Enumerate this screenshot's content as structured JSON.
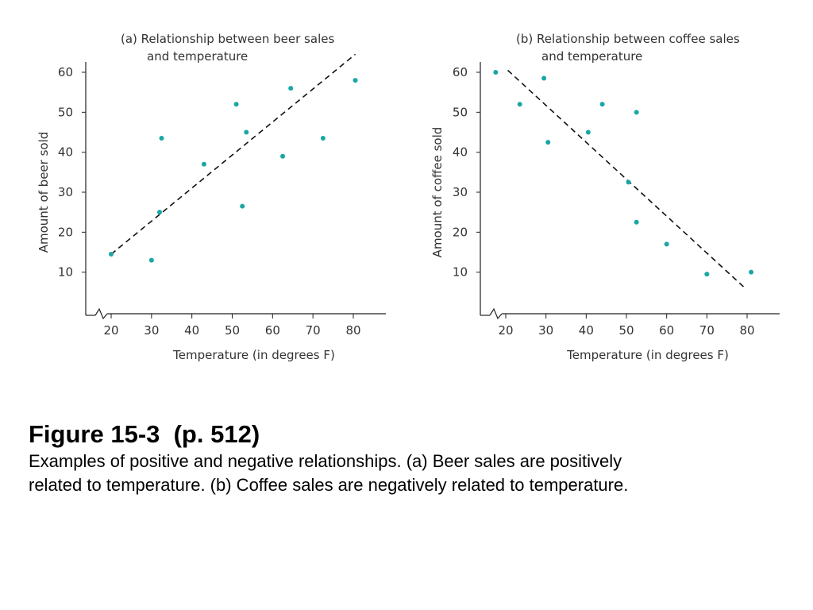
{
  "charts": [
    {
      "title_lines": [
        "(a) Relationship between beer sales",
        "and temperature"
      ],
      "xlabel": "Temperature (in degrees F)",
      "ylabel": "Amount of beer sold",
      "xticks": [
        20,
        30,
        40,
        50,
        60,
        70,
        80
      ],
      "yticks": [
        10,
        20,
        30,
        40,
        50,
        60
      ],
      "point_color": "#1aa6a6"
    },
    {
      "title_lines": [
        "(b) Relationship between coffee sales",
        "and temperature"
      ],
      "xlabel": "Temperature (in degrees F)",
      "ylabel": "Amount of coffee sold",
      "xticks": [
        20,
        30,
        40,
        50,
        60,
        70,
        80
      ],
      "yticks": [
        10,
        20,
        30,
        40,
        50,
        60
      ],
      "point_color": "#1aa6a6"
    }
  ],
  "chart_data": [
    {
      "type": "scatter",
      "title": "(a) Relationship between beer sales and temperature",
      "xlabel": "Temperature (in degrees F)",
      "ylabel": "Amount of beer sold",
      "xlim": [
        15,
        88
      ],
      "ylim": [
        0,
        65
      ],
      "axis_break": "x",
      "grid": false,
      "points": [
        {
          "x": 20,
          "y": 14.5
        },
        {
          "x": 32.5,
          "y": 43.5
        },
        {
          "x": 30,
          "y": 13
        },
        {
          "x": 32,
          "y": 25
        },
        {
          "x": 43,
          "y": 37
        },
        {
          "x": 51,
          "y": 52
        },
        {
          "x": 53.5,
          "y": 45
        },
        {
          "x": 52.5,
          "y": 26.5
        },
        {
          "x": 62.5,
          "y": 39
        },
        {
          "x": 64.5,
          "y": 56
        },
        {
          "x": 72.5,
          "y": 43.5
        },
        {
          "x": 80.5,
          "y": 58
        }
      ],
      "trend_line": {
        "style": "dashed",
        "from": {
          "x": 20,
          "y": 14.5
        },
        "to": {
          "x": 80.5,
          "y": 64.5
        }
      }
    },
    {
      "type": "scatter",
      "title": "(b) Relationship between coffee sales and temperature",
      "xlabel": "Temperature (in degrees F)",
      "ylabel": "Amount of coffee sold",
      "xlim": [
        15,
        88
      ],
      "ylim": [
        0,
        65
      ],
      "axis_break": "x",
      "grid": false,
      "points": [
        {
          "x": 17.5,
          "y": 60
        },
        {
          "x": 23.5,
          "y": 52
        },
        {
          "x": 29.5,
          "y": 58.5
        },
        {
          "x": 30.5,
          "y": 42.5
        },
        {
          "x": 40.5,
          "y": 45
        },
        {
          "x": 44,
          "y": 52
        },
        {
          "x": 50.5,
          "y": 32.5
        },
        {
          "x": 52.5,
          "y": 50
        },
        {
          "x": 52.5,
          "y": 22.5
        },
        {
          "x": 60,
          "y": 17
        },
        {
          "x": 70,
          "y": 9.5
        },
        {
          "x": 81,
          "y": 10
        }
      ],
      "trend_line": {
        "style": "dashed",
        "from": {
          "x": 20.5,
          "y": 60.5
        },
        "to": {
          "x": 79.5,
          "y": 6
        }
      }
    }
  ],
  "caption": {
    "title": "Figure 15-3  (p. 512)",
    "lines": [
      "Examples of positive and negative relationships. (a) Beer sales are positively",
      "related to temperature. (b) Coffee sales are negatively related to temperature."
    ]
  }
}
